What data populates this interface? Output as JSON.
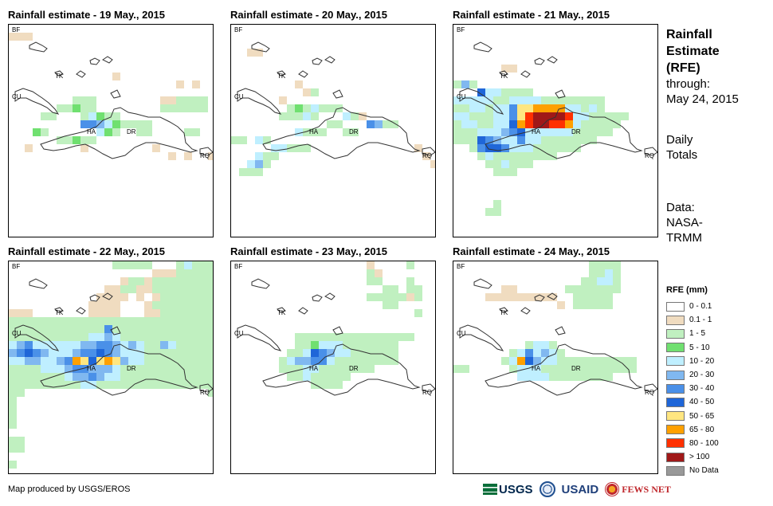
{
  "panels": [
    {
      "title": "Rainfall estimate - 19 May., 2015",
      "day": 19
    },
    {
      "title": "Rainfall estimate - 20 May., 2015",
      "day": 20
    },
    {
      "title": "Rainfall estimate - 21 May., 2015",
      "day": 21
    },
    {
      "title": "Rainfall estimate - 22 May., 2015",
      "day": 22
    },
    {
      "title": "Rainfall estimate - 23 May., 2015",
      "day": 23
    },
    {
      "title": "Rainfall estimate - 24 May., 2015",
      "day": 24
    }
  ],
  "map_labels": {
    "bf": "BF",
    "cu": "CU",
    "tk": "TK",
    "ha": "HA",
    "dr": "DR",
    "rq": "RQ"
  },
  "side": {
    "title_line1": "Rainfall",
    "title_line2": "Estimate",
    "title_line3": "(RFE)",
    "through": "through:",
    "end_date": "May 24, 2015",
    "daily_line1": "Daily",
    "daily_line2": "Totals",
    "data_line1": "Data:",
    "data_line2": "NASA-",
    "data_line3": "TRMM"
  },
  "legend": {
    "title": "RFE (mm)",
    "items": [
      {
        "label": "0 - 0.1",
        "color": "#ffffff"
      },
      {
        "label": "0.1 - 1",
        "color": "#f0dcc0"
      },
      {
        "label": "1 - 5",
        "color": "#c0f0c0"
      },
      {
        "label": "5 - 10",
        "color": "#70e070"
      },
      {
        "label": "10 - 20",
        "color": "#bfefff"
      },
      {
        "label": "20 - 30",
        "color": "#80b8f0"
      },
      {
        "label": "30 - 40",
        "color": "#4a90e8"
      },
      {
        "label": "40 - 50",
        "color": "#1f66d8"
      },
      {
        "label": "50 - 65",
        "color": "#ffe680"
      },
      {
        "label": "65 - 80",
        "color": "#ffa000"
      },
      {
        "label": "80 - 100",
        "color": "#ff3000"
      },
      {
        "label": "> 100",
        "color": "#a01818"
      },
      {
        "label": "No Data",
        "color": "#999999"
      }
    ]
  },
  "footer": {
    "credit": "Map produced by USGS/EROS"
  },
  "logos": {
    "usgs": "USGS",
    "usaid": "USAID",
    "fews": "FEWS NET"
  }
}
